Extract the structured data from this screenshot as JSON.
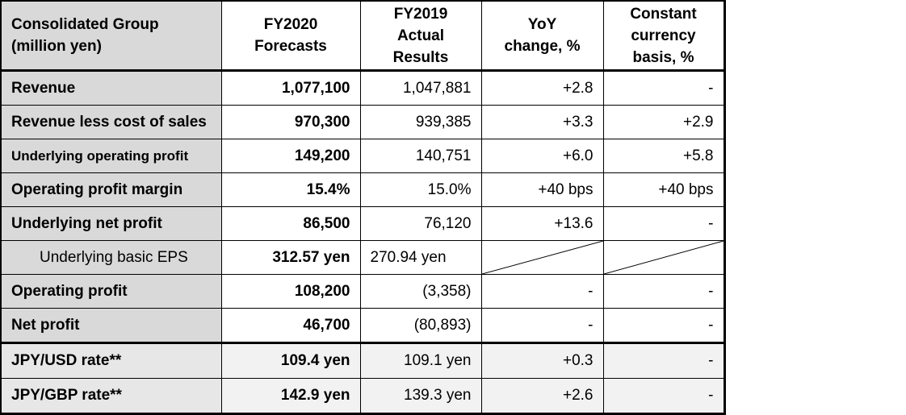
{
  "header": {
    "col0_line1": "Consolidated Group",
    "col0_line2": "(million yen)",
    "col1_line1": "FY2020",
    "col1_line2": "Forecasts",
    "col2_line1": "FY2019",
    "col2_line2": "Actual",
    "col2_line3": "Results",
    "col3_line1": "YoY",
    "col3_line2": "change, %",
    "col4_line1": "Constant",
    "col4_line2": "currency",
    "col4_line3": "basis, %"
  },
  "rows": [
    {
      "label": "Revenue",
      "forecast": "1,077,100",
      "actual": "1,047,881",
      "yoy": "+2.8",
      "cc": "-"
    },
    {
      "label": "Revenue less cost of sales",
      "forecast": "970,300",
      "actual": "939,385",
      "yoy": "+3.3",
      "cc": "+2.9"
    },
    {
      "label": "Underlying operating profit",
      "forecast": "149,200",
      "actual": "140,751",
      "yoy": "+6.0",
      "cc": "+5.8"
    },
    {
      "label": "Operating profit margin",
      "forecast": "15.4%",
      "actual": "15.0%",
      "yoy": "+40 bps",
      "cc": "+40 bps"
    },
    {
      "label": "Underlying net profit",
      "forecast": "86,500",
      "actual": "76,120",
      "yoy": "+13.6",
      "cc": "-"
    },
    {
      "label": "Underlying basic EPS",
      "forecast": "312.57 yen",
      "actual": "270.94 yen"
    },
    {
      "label": "Operating profit",
      "forecast": "108,200",
      "actual": "(3,358)",
      "yoy": "-",
      "cc": "-"
    },
    {
      "label": "Net profit",
      "forecast": "46,700",
      "actual": "(80,893)",
      "yoy": "-",
      "cc": "-"
    },
    {
      "label": "JPY/USD rate**",
      "forecast": "109.4 yen",
      "actual": "109.1 yen",
      "yoy": "+0.3",
      "cc": "-"
    },
    {
      "label": "JPY/GBP rate**",
      "forecast": "142.9 yen",
      "actual": "139.3 yen",
      "yoy": "+2.6",
      "cc": "-"
    }
  ]
}
